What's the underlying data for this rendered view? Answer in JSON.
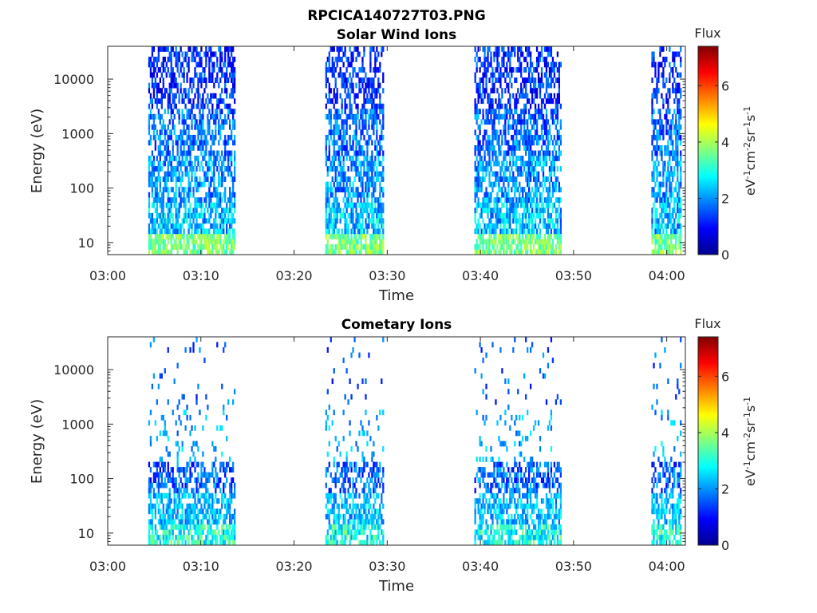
{
  "figure": {
    "title": "RPCICA140727T03.PNG"
  },
  "chart_data": [
    {
      "type": "heatmap",
      "title": "Solar Wind Ions",
      "xlabel": "Time",
      "ylabel": "Energy (eV)",
      "x_ticks": [
        "03:00",
        "03:10",
        "03:20",
        "03:30",
        "03:40",
        "03:50",
        "04:00"
      ],
      "x_range_minutes": [
        0,
        62
      ],
      "y_scale": "log",
      "y_ticks": [
        10,
        100,
        1000,
        10000
      ],
      "y_tick_labels": [
        "10",
        "100",
        "1000",
        "10000"
      ],
      "y_range": [
        6,
        40000
      ],
      "active_intervals": [
        {
          "start": "03:04",
          "end": "03:13"
        },
        {
          "start": "03:23",
          "end": "03:29"
        },
        {
          "start": "03:39",
          "end": "03:48"
        },
        {
          "start": "03:58",
          "end": "04:01"
        }
      ],
      "colorbar": {
        "label": "Flux",
        "units": "eV-1cm-2sr-1s-1",
        "range": [
          0,
          7.4
        ],
        "ticks": [
          0,
          2,
          4,
          6
        ],
        "colormap": "jet"
      }
    },
    {
      "type": "heatmap",
      "title": "Cometary Ions",
      "xlabel": "Time",
      "ylabel": "Energy (eV)",
      "x_ticks": [
        "03:00",
        "03:10",
        "03:20",
        "03:30",
        "03:40",
        "03:50",
        "04:00"
      ],
      "x_range_minutes": [
        0,
        62
      ],
      "y_scale": "log",
      "y_ticks": [
        10,
        100,
        1000,
        10000
      ],
      "y_tick_labels": [
        "10",
        "100",
        "1000",
        "10000"
      ],
      "y_range": [
        6,
        40000
      ],
      "active_intervals": [
        {
          "start": "03:04",
          "end": "03:13"
        },
        {
          "start": "03:23",
          "end": "03:29"
        },
        {
          "start": "03:39",
          "end": "03:48"
        },
        {
          "start": "03:58",
          "end": "04:01"
        }
      ],
      "colorbar": {
        "label": "Flux",
        "units": "eV-1cm-2sr-1s-1",
        "range": [
          0,
          7.4
        ],
        "ticks": [
          0,
          2,
          4,
          6
        ],
        "colormap": "jet"
      }
    }
  ]
}
